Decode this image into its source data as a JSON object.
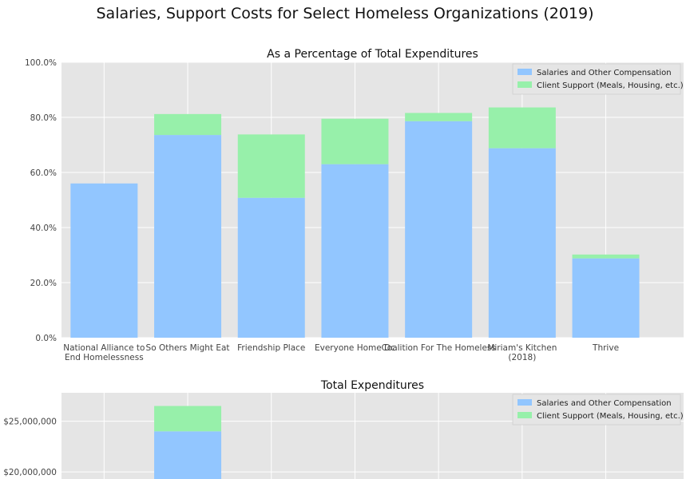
{
  "figure": {
    "title": "Salaries, Support Costs for Select Homeless Organizations (2019)"
  },
  "colors": {
    "salaries": "#92c6ff",
    "client_support": "#97f0aa",
    "plot_bg": "#e5e5e5",
    "grid": "#ffffff"
  },
  "chart_data": [
    {
      "type": "bar",
      "stacked": true,
      "title": "As a Percentage of Total Expenditures",
      "xlabel": "",
      "ylabel": "",
      "categories": [
        [
          "National Alliance to",
          "End Homelessness"
        ],
        [
          "So Others Might Eat"
        ],
        [
          "Friendship Place"
        ],
        [
          "Everyone Home Dc"
        ],
        [
          "Coalition For The Homeless"
        ],
        [
          "Miriam's Kitchen",
          "(2018)"
        ],
        [
          "Thrive"
        ]
      ],
      "series": [
        {
          "name": "Salaries and Other Compensation",
          "values": [
            56.0,
            73.6,
            50.8,
            63.0,
            78.6,
            68.8,
            28.8
          ]
        },
        {
          "name": "Client Support (Meals, Housing, etc.)",
          "values": [
            0.0,
            7.6,
            23.0,
            16.5,
            3.0,
            14.8,
            1.4
          ]
        }
      ],
      "ylim": [
        0,
        100
      ],
      "yticks": [
        0,
        20,
        40,
        60,
        80,
        100
      ],
      "ytick_labels": [
        "0.0%",
        "20.0%",
        "40.0%",
        "60.0%",
        "80.0%",
        "100.0%"
      ],
      "grid": true,
      "legend": "top-right"
    },
    {
      "type": "bar",
      "stacked": true,
      "title": "Total Expenditures",
      "xlabel": "",
      "ylabel": "",
      "categories": [
        [
          "National Alliance to",
          "End Homelessness"
        ],
        [
          "So Others Might Eat"
        ],
        [
          "Friendship Place"
        ],
        [
          "Everyone Home Dc"
        ],
        [
          "Coalition For The Homeless"
        ],
        [
          "Miriam's Kitchen",
          "(2018)"
        ],
        [
          "Thrive"
        ]
      ],
      "series": [
        {
          "name": "Salaries and Other Compensation",
          "values": [
            null,
            24000000,
            null,
            null,
            null,
            null,
            null
          ]
        },
        {
          "name": "Client Support (Meals, Housing, etc.)",
          "values": [
            null,
            2500000,
            null,
            null,
            null,
            null,
            null
          ]
        }
      ],
      "ylim_visible": [
        19300000,
        27800000
      ],
      "yticks": [
        20000000,
        25000000
      ],
      "ytick_labels": [
        "$20,000,000",
        "$25,000,000"
      ],
      "grid": true,
      "legend": "top-right"
    }
  ]
}
